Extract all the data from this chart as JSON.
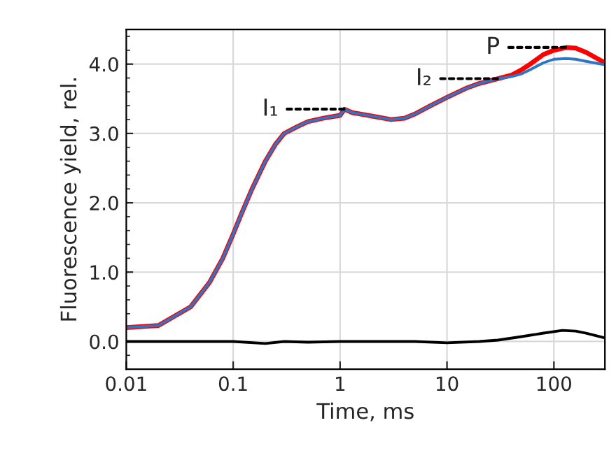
{
  "chart_data": {
    "type": "line",
    "xlabel": "Time, ms",
    "ylabel": "Fluorescence yield, rel.",
    "log": "x",
    "grid": true,
    "marker": "none",
    "line_style": "solid",
    "xlim": [
      0.01,
      300
    ],
    "xticks": [
      0.01,
      0.1,
      1,
      10,
      100
    ],
    "ylim": [
      -0.4,
      4.5
    ],
    "yticks": [
      {
        "value": 0,
        "label": "0.0"
      },
      {
        "value": 1,
        "label": "1.0"
      },
      {
        "value": 2,
        "label": "2.0"
      },
      {
        "value": 3,
        "label": "3.0"
      },
      {
        "value": 4,
        "label": "4.0"
      }
    ],
    "series": [
      {
        "color": "#ff0000",
        "x": [
          0.01,
          0.02,
          0.04,
          0.06,
          0.08,
          0.1,
          0.12,
          0.15,
          0.2,
          0.25,
          0.3,
          0.4,
          0.5,
          0.7,
          0.9,
          1.0,
          1.1,
          1.3,
          2,
          3,
          4,
          5,
          7,
          10,
          15,
          20,
          30,
          40,
          50,
          60,
          80,
          100,
          130,
          160,
          200,
          300
        ],
        "values": [
          0.2,
          0.23,
          0.5,
          0.85,
          1.2,
          1.55,
          1.85,
          2.2,
          2.6,
          2.85,
          3.0,
          3.1,
          3.17,
          3.22,
          3.25,
          3.26,
          3.35,
          3.3,
          3.25,
          3.2,
          3.22,
          3.28,
          3.4,
          3.52,
          3.65,
          3.72,
          3.79,
          3.84,
          3.92,
          4.0,
          4.14,
          4.2,
          4.24,
          4.23,
          4.17,
          4.02
        ]
      },
      {
        "color": "#2e75c6",
        "x": [
          0.01,
          0.02,
          0.04,
          0.06,
          0.08,
          0.1,
          0.12,
          0.15,
          0.2,
          0.25,
          0.3,
          0.4,
          0.5,
          0.7,
          0.9,
          1.0,
          1.1,
          1.3,
          2,
          3,
          4,
          5,
          7,
          10,
          15,
          20,
          30,
          40,
          50,
          60,
          80,
          100,
          130,
          160,
          200,
          300
        ],
        "values": [
          0.2,
          0.23,
          0.5,
          0.85,
          1.2,
          1.55,
          1.85,
          2.2,
          2.6,
          2.85,
          3.0,
          3.1,
          3.17,
          3.22,
          3.25,
          3.26,
          3.35,
          3.3,
          3.25,
          3.2,
          3.22,
          3.28,
          3.4,
          3.52,
          3.65,
          3.72,
          3.79,
          3.82,
          3.86,
          3.92,
          4.02,
          4.07,
          4.08,
          4.07,
          4.04,
          3.99
        ]
      },
      {
        "color": "#000000",
        "x": [
          0.01,
          0.05,
          0.1,
          0.2,
          0.3,
          0.5,
          1,
          2,
          5,
          10,
          20,
          30,
          50,
          80,
          120,
          160,
          200,
          300
        ],
        "values": [
          0,
          0,
          0,
          -0.03,
          0,
          -0.01,
          0,
          0,
          0,
          -0.02,
          0,
          0.02,
          0.07,
          0.12,
          0.16,
          0.15,
          0.12,
          0.05
        ]
      }
    ],
    "annotations": [
      {
        "text": "I₁",
        "x": 1.1,
        "y": 3.35
      },
      {
        "text": "I₂",
        "x": 30,
        "y": 3.79
      },
      {
        "text": "P",
        "x": 130,
        "y": 4.24
      }
    ]
  }
}
